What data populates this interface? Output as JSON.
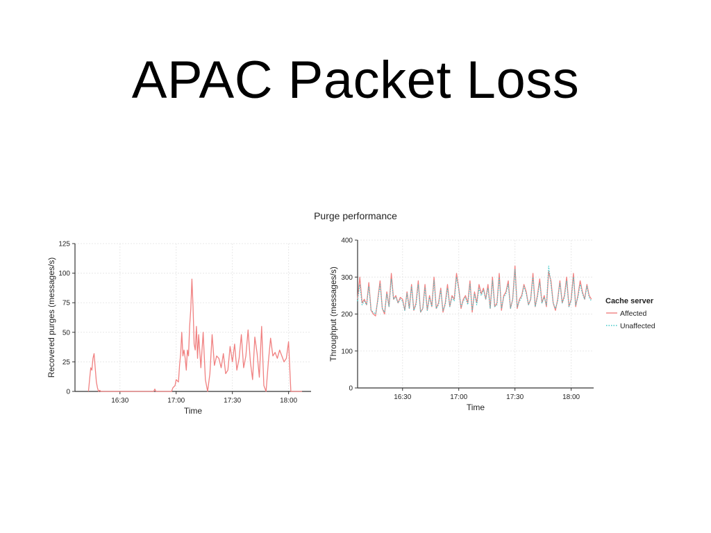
{
  "slide": {
    "title": "APAC Packet Loss"
  },
  "figure": {
    "title": "Purge performance"
  },
  "colors": {
    "affected": "#f08080",
    "unaffected": "#3cc8c8",
    "grid": "#e8e8e8",
    "axis": "#333333"
  },
  "legend": {
    "title": "Cache server",
    "items": [
      {
        "label": "Affected",
        "style": "solid"
      },
      {
        "label": "Unaffected",
        "style": "dotted"
      }
    ]
  },
  "chart_data": [
    {
      "type": "line",
      "xlabel": "Time",
      "ylabel": "Recovered purges (messages/s)",
      "xlim": [
        16.1,
        18.2
      ],
      "ylim": [
        0,
        125
      ],
      "xticks": [
        16.5,
        17.0,
        17.5,
        18.0
      ],
      "xtick_labels": [
        "16:30",
        "17:00",
        "17:30",
        "18:00"
      ],
      "yticks": [
        0,
        25,
        50,
        75,
        100,
        125
      ],
      "ytick_labels": [
        "0",
        "25",
        "50",
        "75",
        "100",
        "125"
      ],
      "grid": true,
      "series": [
        {
          "name": "Affected",
          "x": [
            16.22,
            16.23,
            16.24,
            16.25,
            16.26,
            16.27,
            16.28,
            16.29,
            16.3,
            16.31,
            16.32,
            16.33,
            16.34,
            16.8,
            16.81,
            16.82,
            16.96,
            16.97,
            16.99,
            17.0,
            17.02,
            17.03,
            17.04,
            17.05,
            17.06,
            17.07,
            17.08,
            17.09,
            17.1,
            17.11,
            17.12,
            17.13,
            17.14,
            17.15,
            17.16,
            17.17,
            17.18,
            17.19,
            17.2,
            17.22,
            17.24,
            17.26,
            17.28,
            17.3,
            17.32,
            17.34,
            17.36,
            17.38,
            17.4,
            17.42,
            17.44,
            17.46,
            17.48,
            17.5,
            17.52,
            17.54,
            17.56,
            17.58,
            17.6,
            17.62,
            17.64,
            17.66,
            17.68,
            17.7,
            17.72,
            17.74,
            17.76,
            17.78,
            17.8,
            17.82,
            17.84,
            17.86,
            17.88,
            17.9,
            17.92,
            17.94,
            17.96,
            17.98,
            18.0,
            18.02,
            18.04,
            18.06,
            18.08,
            18.1,
            18.12
          ],
          "y": [
            0,
            10,
            20,
            18,
            28,
            32,
            20,
            8,
            3,
            0,
            1,
            0,
            0,
            0,
            2,
            0,
            0,
            3,
            5,
            10,
            8,
            22,
            32,
            50,
            30,
            35,
            28,
            18,
            35,
            30,
            55,
            70,
            95,
            72,
            40,
            35,
            55,
            28,
            48,
            20,
            50,
            10,
            0,
            15,
            48,
            22,
            30,
            28,
            20,
            32,
            15,
            18,
            38,
            25,
            40,
            18,
            28,
            48,
            20,
            30,
            52,
            25,
            10,
            46,
            32,
            12,
            55,
            5,
            0,
            25,
            45,
            30,
            33,
            28,
            35,
            30,
            25,
            28,
            42,
            0,
            0,
            0,
            0,
            0,
            0
          ]
        }
      ]
    },
    {
      "type": "line",
      "xlabel": "Time",
      "ylabel": "Throughput (messages/s)",
      "xlim": [
        16.1,
        18.2
      ],
      "ylim": [
        0,
        400
      ],
      "xticks": [
        16.5,
        17.0,
        17.5,
        18.0
      ],
      "xtick_labels": [
        "16:30",
        "17:00",
        "17:30",
        "18:00"
      ],
      "yticks": [
        0,
        100,
        200,
        300,
        400
      ],
      "ytick_labels": [
        "0",
        "100",
        "200",
        "300",
        "400"
      ],
      "grid": true,
      "series": [
        {
          "name": "Affected",
          "x": [
            16.1,
            16.12,
            16.14,
            16.16,
            16.18,
            16.2,
            16.22,
            16.24,
            16.26,
            16.28,
            16.3,
            16.32,
            16.34,
            16.36,
            16.38,
            16.4,
            16.42,
            16.44,
            16.46,
            16.48,
            16.5,
            16.52,
            16.54,
            16.56,
            16.58,
            16.6,
            16.62,
            16.64,
            16.66,
            16.68,
            16.7,
            16.72,
            16.74,
            16.76,
            16.78,
            16.8,
            16.82,
            16.84,
            16.86,
            16.88,
            16.9,
            16.92,
            16.94,
            16.96,
            16.98,
            17.0,
            17.02,
            17.04,
            17.06,
            17.08,
            17.1,
            17.12,
            17.14,
            17.16,
            17.18,
            17.2,
            17.22,
            17.24,
            17.26,
            17.28,
            17.3,
            17.32,
            17.34,
            17.36,
            17.38,
            17.4,
            17.42,
            17.44,
            17.46,
            17.48,
            17.5,
            17.52,
            17.54,
            17.56,
            17.58,
            17.6,
            17.62,
            17.64,
            17.66,
            17.68,
            17.7,
            17.72,
            17.74,
            17.76,
            17.78,
            17.8,
            17.82,
            17.84,
            17.86,
            17.88,
            17.9,
            17.92,
            17.94,
            17.96,
            17.98,
            18.0,
            18.02,
            18.04,
            18.06,
            18.08,
            18.1,
            18.12,
            18.14,
            18.16,
            18.18
          ],
          "y": [
            240,
            300,
            230,
            240,
            225,
            285,
            210,
            200,
            195,
            240,
            290,
            215,
            200,
            260,
            220,
            310,
            240,
            250,
            230,
            245,
            240,
            210,
            260,
            215,
            280,
            210,
            230,
            290,
            205,
            215,
            280,
            210,
            250,
            220,
            300,
            215,
            230,
            270,
            205,
            230,
            280,
            220,
            250,
            240,
            310,
            270,
            215,
            240,
            250,
            230,
            290,
            205,
            260,
            230,
            280,
            255,
            270,
            240,
            280,
            215,
            300,
            220,
            230,
            310,
            210,
            250,
            260,
            290,
            215,
            240,
            330,
            215,
            240,
            250,
            280,
            260,
            225,
            240,
            310,
            220,
            250,
            295,
            230,
            250,
            220,
            315,
            290,
            230,
            210,
            240,
            290,
            230,
            250,
            300,
            220,
            240,
            310,
            220,
            250,
            290,
            260,
            240,
            280,
            250,
            240
          ]
        },
        {
          "name": "Unaffected",
          "x": [
            16.1,
            16.12,
            16.14,
            16.16,
            16.18,
            16.2,
            16.22,
            16.24,
            16.26,
            16.28,
            16.3,
            16.32,
            16.34,
            16.36,
            16.38,
            16.4,
            16.42,
            16.44,
            16.46,
            16.48,
            16.5,
            16.52,
            16.54,
            16.56,
            16.58,
            16.6,
            16.62,
            16.64,
            16.66,
            16.68,
            16.7,
            16.72,
            16.74,
            16.76,
            16.78,
            16.8,
            16.82,
            16.84,
            16.86,
            16.88,
            16.9,
            16.92,
            16.94,
            16.96,
            16.98,
            17.0,
            17.02,
            17.04,
            17.06,
            17.08,
            17.1,
            17.12,
            17.14,
            17.16,
            17.18,
            17.2,
            17.22,
            17.24,
            17.26,
            17.28,
            17.3,
            17.32,
            17.34,
            17.36,
            17.38,
            17.4,
            17.42,
            17.44,
            17.46,
            17.48,
            17.5,
            17.52,
            17.54,
            17.56,
            17.58,
            17.6,
            17.62,
            17.64,
            17.66,
            17.68,
            17.7,
            17.72,
            17.74,
            17.76,
            17.78,
            17.8,
            17.82,
            17.84,
            17.86,
            17.88,
            17.9,
            17.92,
            17.94,
            17.96,
            17.98,
            18.0,
            18.02,
            18.04,
            18.06,
            18.08,
            18.1,
            18.12,
            18.14,
            18.16,
            18.18
          ],
          "y": [
            235,
            280,
            225,
            235,
            225,
            275,
            210,
            205,
            200,
            235,
            280,
            215,
            205,
            255,
            220,
            295,
            240,
            245,
            230,
            240,
            235,
            210,
            255,
            215,
            275,
            210,
            225,
            280,
            205,
            215,
            270,
            210,
            245,
            220,
            290,
            215,
            225,
            265,
            210,
            225,
            270,
            220,
            245,
            235,
            300,
            265,
            220,
            235,
            245,
            225,
            280,
            210,
            255,
            225,
            270,
            250,
            265,
            240,
            270,
            215,
            290,
            220,
            225,
            300,
            215,
            245,
            255,
            280,
            215,
            240,
            320,
            220,
            235,
            245,
            275,
            255,
            225,
            240,
            300,
            220,
            245,
            285,
            230,
            245,
            225,
            330,
            280,
            230,
            215,
            235,
            285,
            230,
            245,
            290,
            220,
            235,
            300,
            225,
            245,
            280,
            255,
            240,
            275,
            245,
            235
          ]
        }
      ]
    }
  ]
}
